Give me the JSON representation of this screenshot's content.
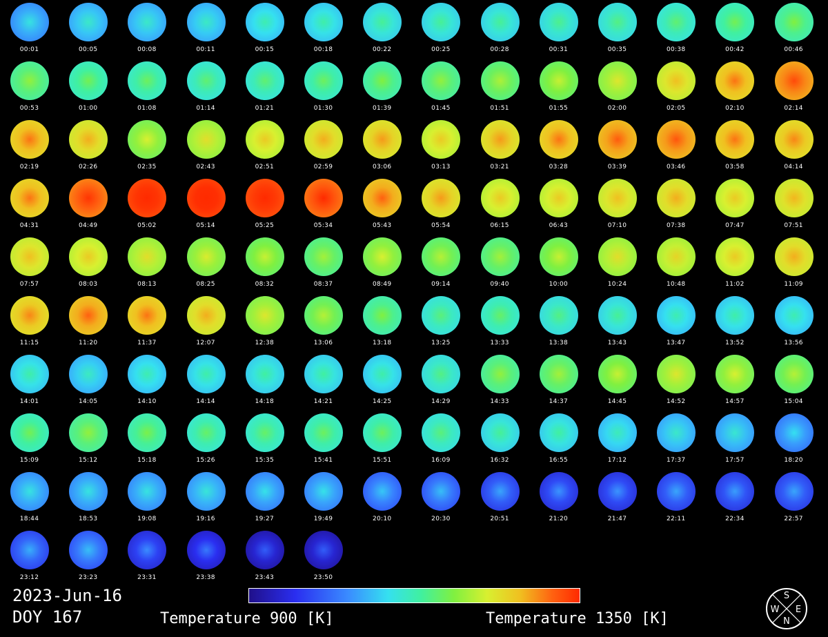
{
  "chart_data": {
    "type": "heatmap",
    "title": "2023-Jun-16",
    "subtitle": "DOY 167",
    "colorbar": {
      "min_label": "Temperature 900 [K]",
      "max_label": "Temperature 1350 [K]",
      "min": 900,
      "max": 1350,
      "colors": [
        "#20108a",
        "#2a2ef0",
        "#3a8cff",
        "#35e0f0",
        "#40f0a0",
        "#80f040",
        "#d8f030",
        "#f0c020",
        "#ff6010",
        "#ff2a00"
      ]
    },
    "compass": {
      "top": "S",
      "left": "W",
      "right": "E",
      "bottom": "N"
    },
    "frames": [
      {
        "time": "00:01",
        "t": 1020
      },
      {
        "time": "00:05",
        "t": 1035
      },
      {
        "time": "00:08",
        "t": 1035
      },
      {
        "time": "00:11",
        "t": 1038
      },
      {
        "time": "00:15",
        "t": 1050
      },
      {
        "time": "00:18",
        "t": 1055
      },
      {
        "time": "00:22",
        "t": 1065
      },
      {
        "time": "00:25",
        "t": 1065
      },
      {
        "time": "00:28",
        "t": 1065
      },
      {
        "time": "00:31",
        "t": 1070
      },
      {
        "time": "00:35",
        "t": 1075
      },
      {
        "time": "00:38",
        "t": 1085
      },
      {
        "time": "00:42",
        "t": 1100
      },
      {
        "time": "00:46",
        "t": 1110
      },
      {
        "time": "00:53",
        "t": 1120
      },
      {
        "time": "01:00",
        "t": 1100
      },
      {
        "time": "01:08",
        "t": 1095
      },
      {
        "time": "01:14",
        "t": 1085
      },
      {
        "time": "01:21",
        "t": 1085
      },
      {
        "time": "01:30",
        "t": 1095
      },
      {
        "time": "01:39",
        "t": 1110
      },
      {
        "time": "01:45",
        "t": 1120
      },
      {
        "time": "01:51",
        "t": 1135
      },
      {
        "time": "01:55",
        "t": 1150
      },
      {
        "time": "02:00",
        "t": 1170
      },
      {
        "time": "02:05",
        "t": 1210
      },
      {
        "time": "02:10",
        "t": 1250
      },
      {
        "time": "02:14",
        "t": 1280
      },
      {
        "time": "02:19",
        "t": 1250
      },
      {
        "time": "02:26",
        "t": 1220
      },
      {
        "time": "02:35",
        "t": 1160
      },
      {
        "time": "02:43",
        "t": 1180
      },
      {
        "time": "02:51",
        "t": 1200
      },
      {
        "time": "02:59",
        "t": 1220
      },
      {
        "time": "03:06",
        "t": 1230
      },
      {
        "time": "03:13",
        "t": 1200
      },
      {
        "time": "03:21",
        "t": 1230
      },
      {
        "time": "03:28",
        "t": 1250
      },
      {
        "time": "03:39",
        "t": 1265
      },
      {
        "time": "03:46",
        "t": 1270
      },
      {
        "time": "03:58",
        "t": 1250
      },
      {
        "time": "04:14",
        "t": 1240
      },
      {
        "time": "04:31",
        "t": 1250
      },
      {
        "time": "04:49",
        "t": 1300
      },
      {
        "time": "05:02",
        "t": 1340
      },
      {
        "time": "05:14",
        "t": 1345
      },
      {
        "time": "05:25",
        "t": 1335
      },
      {
        "time": "05:34",
        "t": 1310
      },
      {
        "time": "05:43",
        "t": 1260
      },
      {
        "time": "05:54",
        "t": 1230
      },
      {
        "time": "06:15",
        "t": 1200
      },
      {
        "time": "06:43",
        "t": 1200
      },
      {
        "time": "07:10",
        "t": 1210
      },
      {
        "time": "07:38",
        "t": 1220
      },
      {
        "time": "07:47",
        "t": 1200
      },
      {
        "time": "07:51",
        "t": 1215
      },
      {
        "time": "07:57",
        "t": 1210
      },
      {
        "time": "08:03",
        "t": 1200
      },
      {
        "time": "08:13",
        "t": 1180
      },
      {
        "time": "08:25",
        "t": 1165
      },
      {
        "time": "08:32",
        "t": 1150
      },
      {
        "time": "08:37",
        "t": 1130
      },
      {
        "time": "08:49",
        "t": 1160
      },
      {
        "time": "09:14",
        "t": 1140
      },
      {
        "time": "09:40",
        "t": 1130
      },
      {
        "time": "10:00",
        "t": 1150
      },
      {
        "time": "10:24",
        "t": 1180
      },
      {
        "time": "10:48",
        "t": 1190
      },
      {
        "time": "11:02",
        "t": 1200
      },
      {
        "time": "11:09",
        "t": 1220
      },
      {
        "time": "11:15",
        "t": 1240
      },
      {
        "time": "11:20",
        "t": 1260
      },
      {
        "time": "11:37",
        "t": 1250
      },
      {
        "time": "12:07",
        "t": 1220
      },
      {
        "time": "12:38",
        "t": 1170
      },
      {
        "time": "13:06",
        "t": 1140
      },
      {
        "time": "13:18",
        "t": 1110
      },
      {
        "time": "13:25",
        "t": 1080
      },
      {
        "time": "13:33",
        "t": 1090
      },
      {
        "time": "13:38",
        "t": 1075
      },
      {
        "time": "13:43",
        "t": 1065
      },
      {
        "time": "13:47",
        "t": 1050
      },
      {
        "time": "13:52",
        "t": 1055
      },
      {
        "time": "13:56",
        "t": 1050
      },
      {
        "time": "14:01",
        "t": 1055
      },
      {
        "time": "14:05",
        "t": 1040
      },
      {
        "time": "14:10",
        "t": 1050
      },
      {
        "time": "14:14",
        "t": 1055
      },
      {
        "time": "14:18",
        "t": 1060
      },
      {
        "time": "14:21",
        "t": 1060
      },
      {
        "time": "14:25",
        "t": 1055
      },
      {
        "time": "14:29",
        "t": 1075
      },
      {
        "time": "14:33",
        "t": 1120
      },
      {
        "time": "14:37",
        "t": 1130
      },
      {
        "time": "14:45",
        "t": 1150
      },
      {
        "time": "14:52",
        "t": 1170
      },
      {
        "time": "14:57",
        "t": 1160
      },
      {
        "time": "15:04",
        "t": 1140
      },
      {
        "time": "15:09",
        "t": 1100
      },
      {
        "time": "15:12",
        "t": 1120
      },
      {
        "time": "15:18",
        "t": 1105
      },
      {
        "time": "15:26",
        "t": 1090
      },
      {
        "time": "15:35",
        "t": 1090
      },
      {
        "time": "15:41",
        "t": 1095
      },
      {
        "time": "15:51",
        "t": 1095
      },
      {
        "time": "16:09",
        "t": 1080
      },
      {
        "time": "16:32",
        "t": 1065
      },
      {
        "time": "16:55",
        "t": 1060
      },
      {
        "time": "17:12",
        "t": 1045
      },
      {
        "time": "17:37",
        "t": 1035
      },
      {
        "time": "17:57",
        "t": 1030
      },
      {
        "time": "18:20",
        "t": 1010
      },
      {
        "time": "18:44",
        "t": 1020
      },
      {
        "time": "18:53",
        "t": 1020
      },
      {
        "time": "19:08",
        "t": 1020
      },
      {
        "time": "19:16",
        "t": 1025
      },
      {
        "time": "19:27",
        "t": 1015
      },
      {
        "time": "19:49",
        "t": 1015
      },
      {
        "time": "20:10",
        "t": 995
      },
      {
        "time": "20:30",
        "t": 990
      },
      {
        "time": "20:51",
        "t": 975
      },
      {
        "time": "21:20",
        "t": 965
      },
      {
        "time": "21:47",
        "t": 965
      },
      {
        "time": "22:11",
        "t": 975
      },
      {
        "time": "22:34",
        "t": 970
      },
      {
        "time": "22:57",
        "t": 975
      },
      {
        "time": "23:12",
        "t": 980
      },
      {
        "time": "23:23",
        "t": 990
      },
      {
        "time": "23:31",
        "t": 960
      },
      {
        "time": "23:38",
        "t": 950
      },
      {
        "time": "23:43",
        "t": 935
      },
      {
        "time": "23:50",
        "t": 935
      }
    ]
  }
}
